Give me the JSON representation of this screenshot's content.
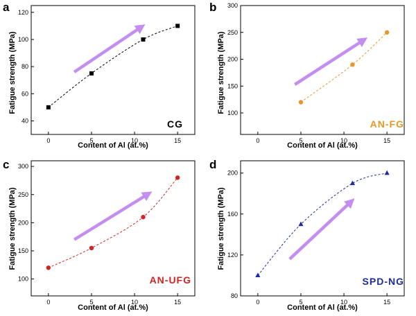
{
  "colors": {
    "arrow": "#c38ef0",
    "axis": "#000000"
  },
  "chart_data": [
    {
      "type": "line",
      "panel_label": "a",
      "sample_label": "CG",
      "sample_color": "#000000",
      "marker": "square",
      "xlabel": "Content of Al (at.%)",
      "ylabel": "Fatigue strength (MPa)",
      "xlim": [
        -2,
        17
      ],
      "ylim": [
        30,
        125
      ],
      "xticks": [
        0,
        5,
        10,
        15
      ],
      "yticks": [
        40,
        60,
        80,
        100,
        120
      ],
      "x": [
        0,
        5,
        11,
        15
      ],
      "y": [
        50,
        75,
        100,
        110
      ],
      "arrow": {
        "from": [
          3,
          76
        ],
        "to": [
          11.2,
          111
        ]
      }
    },
    {
      "type": "line",
      "panel_label": "b",
      "sample_label": "AN-FG",
      "sample_color": "#e8962a",
      "marker": "circle",
      "xlabel": "Content of Al (at.%)",
      "ylabel": "Fatigue strength (MPa)",
      "xlim": [
        -2,
        17
      ],
      "ylim": [
        60,
        300
      ],
      "xticks": [
        0,
        5,
        10,
        15
      ],
      "yticks": [
        100,
        150,
        200,
        250,
        300
      ],
      "x": [
        5,
        11,
        15
      ],
      "y": [
        120,
        190,
        250
      ],
      "arrow": {
        "from": [
          4.3,
          153
        ],
        "to": [
          12.7,
          240
        ]
      }
    },
    {
      "type": "line",
      "panel_label": "c",
      "sample_label": "AN-UFG",
      "sample_color": "#d42323",
      "marker": "circle",
      "xlabel": "Content of Al (at.%)",
      "ylabel": "Fatigue strength (MPa)",
      "xlim": [
        -2,
        17
      ],
      "ylim": [
        70,
        310
      ],
      "xticks": [
        0,
        5,
        10,
        15
      ],
      "yticks": [
        100,
        150,
        200,
        250,
        300
      ],
      "x": [
        0,
        5,
        11,
        15
      ],
      "y": [
        120,
        155,
        210,
        280
      ],
      "arrow": {
        "from": [
          3,
          170
        ],
        "to": [
          12,
          255
        ]
      }
    },
    {
      "type": "line",
      "panel_label": "d",
      "sample_label": "SPD-NG",
      "sample_color": "#1e2aa0",
      "marker": "triangle",
      "xlabel": "Content of Al (at.%)",
      "ylabel": "Fatigue strength (MPa)",
      "xlim": [
        -2,
        17
      ],
      "ylim": [
        80,
        212
      ],
      "xticks": [
        0,
        5,
        10,
        15
      ],
      "yticks": [
        80,
        120,
        160,
        200
      ],
      "x": [
        0,
        5,
        11,
        15
      ],
      "y": [
        100,
        150,
        190,
        200
      ],
      "arrow": {
        "from": [
          3.7,
          116
        ],
        "to": [
          11.2,
          175
        ]
      }
    }
  ]
}
